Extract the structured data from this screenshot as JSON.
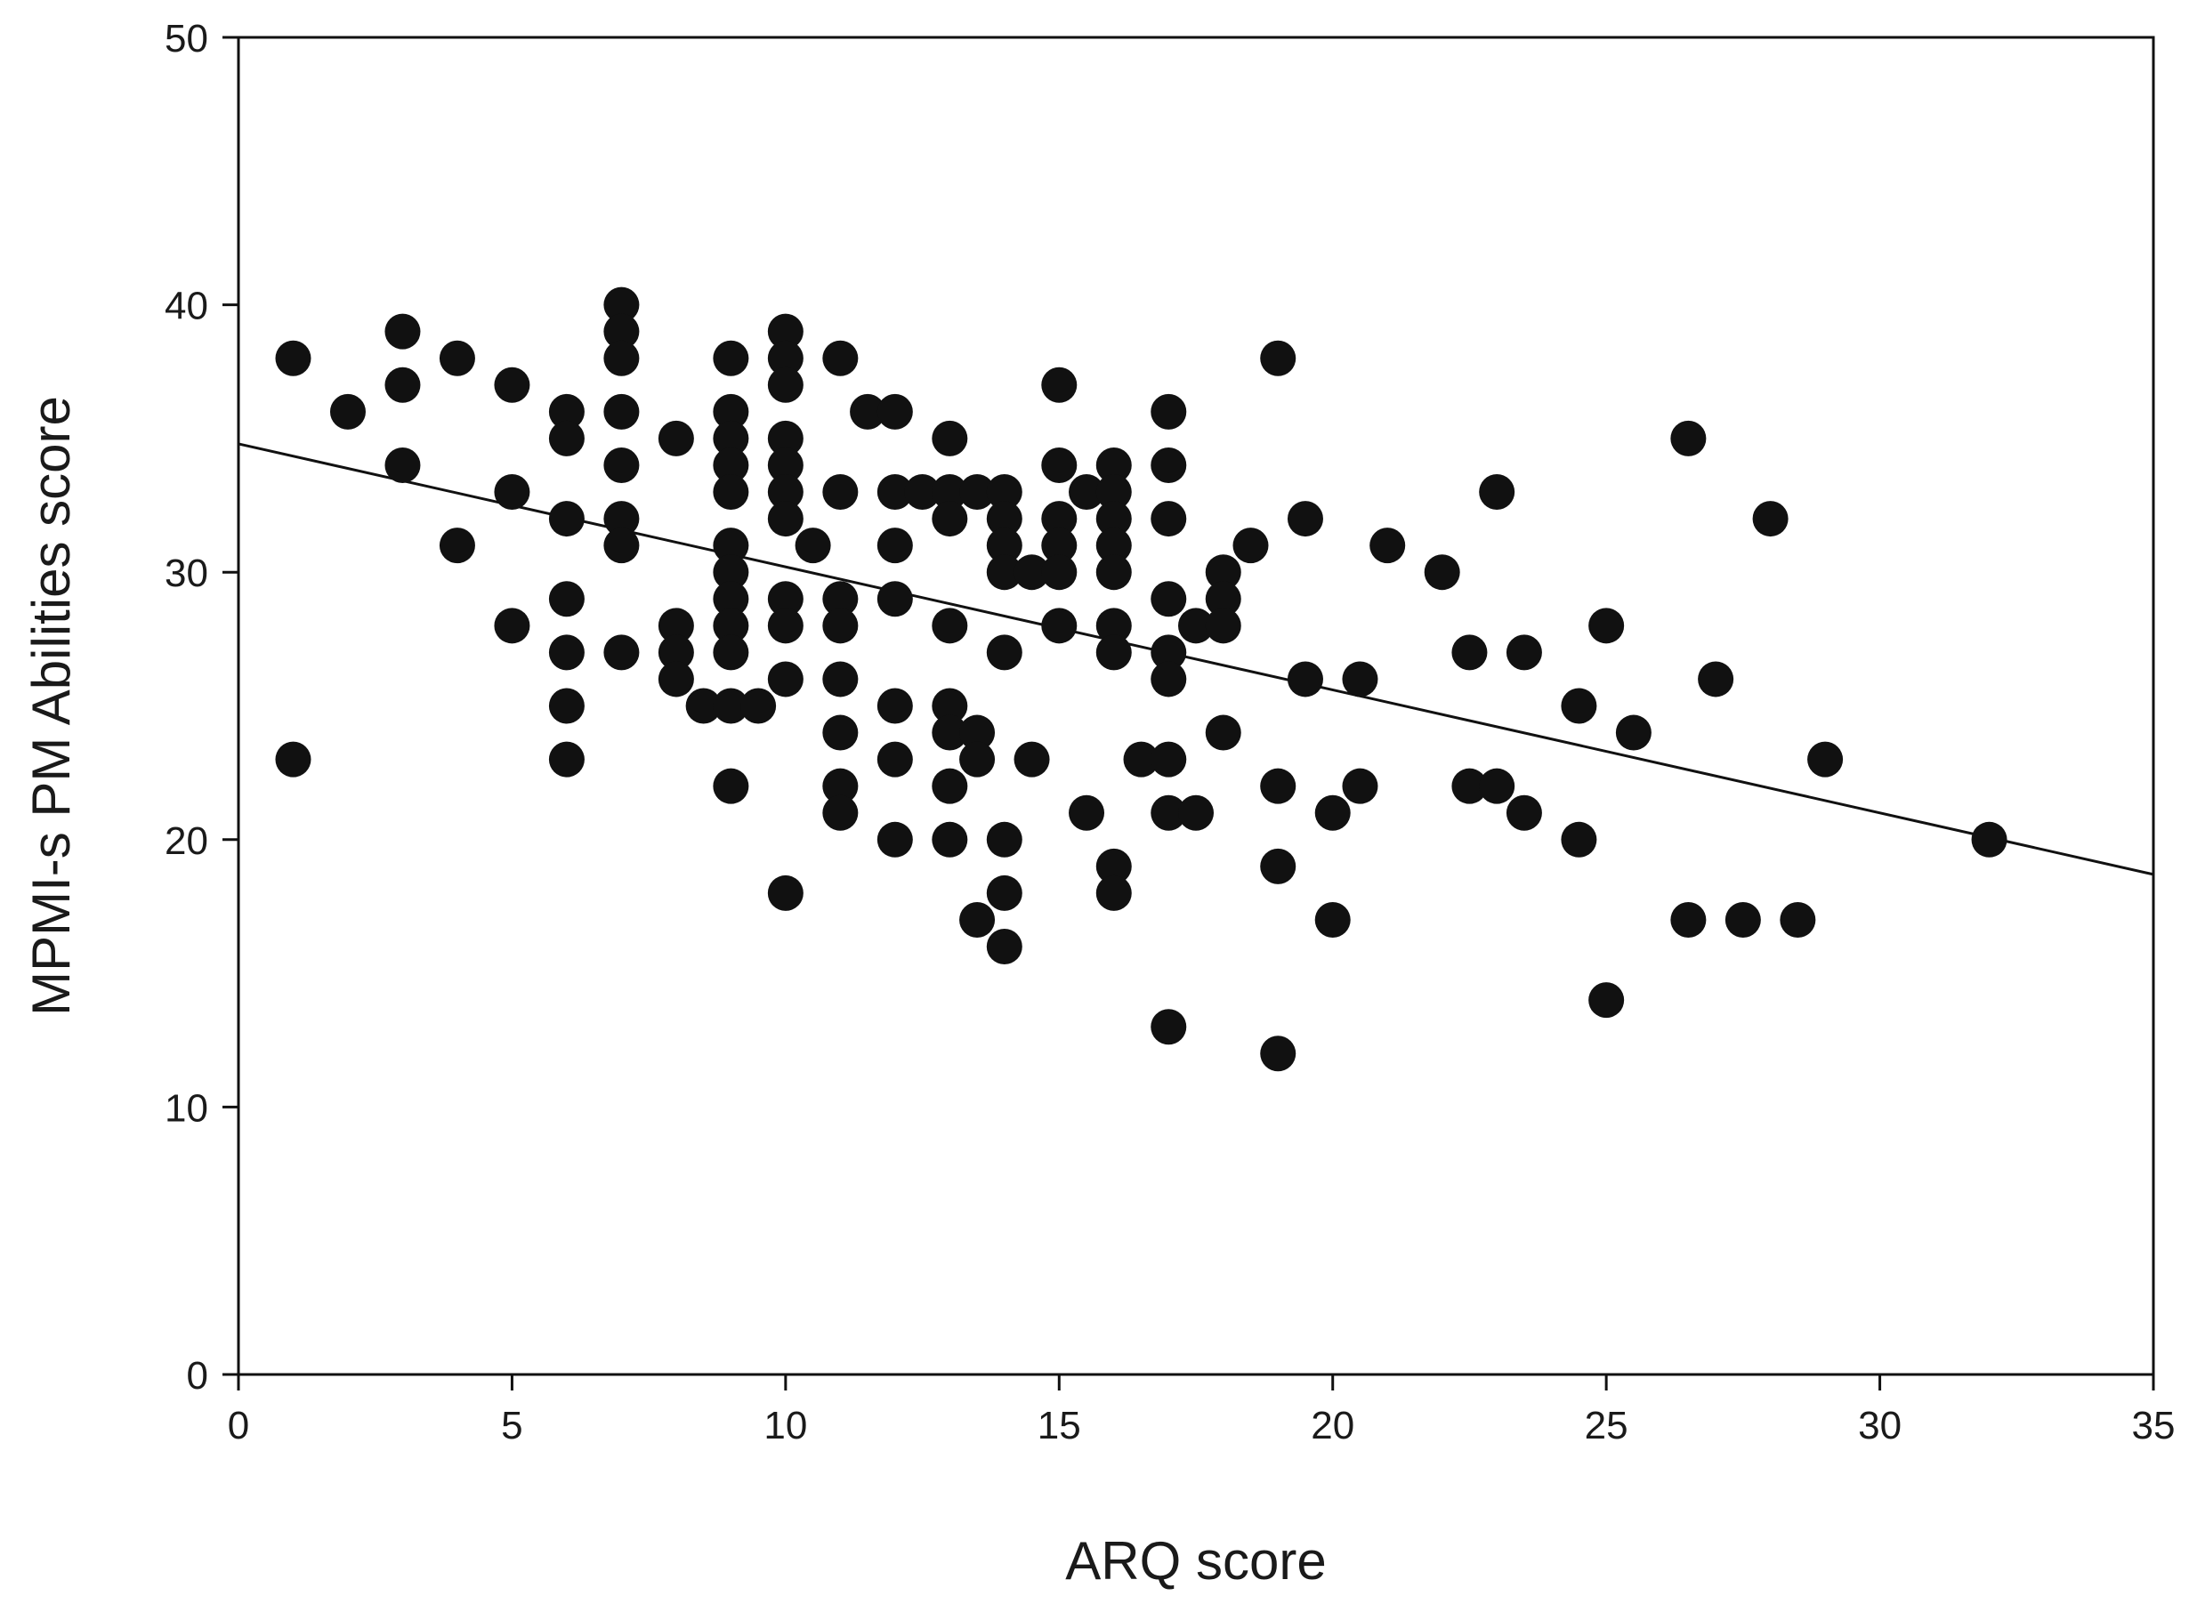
{
  "chart_data": {
    "type": "scatter",
    "title": "",
    "xlabel": "ARQ score",
    "ylabel": "MPMI-s PM Abilities score",
    "xlim": [
      0,
      35
    ],
    "ylim": [
      0,
      50
    ],
    "x_ticks": [
      0,
      5,
      10,
      15,
      20,
      25,
      30,
      35
    ],
    "y_ticks": [
      0,
      10,
      20,
      30,
      40,
      50
    ],
    "grid": false,
    "legend": "none",
    "marker_color": "#111111",
    "points": [
      [
        1,
        38
      ],
      [
        1,
        23
      ],
      [
        2,
        36
      ],
      [
        3,
        39
      ],
      [
        3,
        37
      ],
      [
        3,
        34
      ],
      [
        4,
        38
      ],
      [
        4,
        31
      ],
      [
        5,
        37
      ],
      [
        5,
        33
      ],
      [
        5,
        28
      ],
      [
        6,
        36
      ],
      [
        6,
        35
      ],
      [
        6,
        32
      ],
      [
        6,
        29
      ],
      [
        6,
        27
      ],
      [
        6,
        25
      ],
      [
        6,
        23
      ],
      [
        7,
        40
      ],
      [
        7,
        39
      ],
      [
        7,
        38
      ],
      [
        7,
        36
      ],
      [
        7,
        34
      ],
      [
        7,
        32
      ],
      [
        7,
        31
      ],
      [
        7,
        27
      ],
      [
        8,
        35
      ],
      [
        8,
        28
      ],
      [
        8,
        27
      ],
      [
        8,
        26
      ],
      [
        8.5,
        25
      ],
      [
        9,
        38
      ],
      [
        9,
        36
      ],
      [
        9,
        35
      ],
      [
        9,
        34
      ],
      [
        9,
        33
      ],
      [
        9,
        31
      ],
      [
        9,
        30
      ],
      [
        9,
        29
      ],
      [
        9,
        28
      ],
      [
        9,
        27
      ],
      [
        9,
        25
      ],
      [
        9,
        22
      ],
      [
        9.5,
        25
      ],
      [
        10,
        39
      ],
      [
        10,
        38
      ],
      [
        10,
        37
      ],
      [
        10,
        35
      ],
      [
        10,
        34
      ],
      [
        10,
        33
      ],
      [
        10,
        32
      ],
      [
        10,
        29
      ],
      [
        10,
        28
      ],
      [
        10,
        26
      ],
      [
        10,
        18
      ],
      [
        10.5,
        31
      ],
      [
        11,
        38
      ],
      [
        11,
        33
      ],
      [
        11,
        29
      ],
      [
        11,
        28
      ],
      [
        11,
        26
      ],
      [
        11,
        24
      ],
      [
        11,
        22
      ],
      [
        11,
        21
      ],
      [
        11.5,
        36
      ],
      [
        12,
        36
      ],
      [
        12,
        33
      ],
      [
        12,
        31
      ],
      [
        12,
        29
      ],
      [
        12,
        25
      ],
      [
        12,
        23
      ],
      [
        12,
        20
      ],
      [
        12.5,
        33
      ],
      [
        13,
        35
      ],
      [
        13,
        33
      ],
      [
        13,
        32
      ],
      [
        13,
        28
      ],
      [
        13,
        25
      ],
      [
        13,
        24
      ],
      [
        13,
        22
      ],
      [
        13,
        20
      ],
      [
        13.5,
        33
      ],
      [
        13.5,
        24
      ],
      [
        13.5,
        23
      ],
      [
        13.5,
        17
      ],
      [
        14,
        33
      ],
      [
        14,
        32
      ],
      [
        14,
        31
      ],
      [
        14,
        30
      ],
      [
        14,
        27
      ],
      [
        14,
        20
      ],
      [
        14,
        18
      ],
      [
        14,
        16
      ],
      [
        14.5,
        30
      ],
      [
        14.5,
        23
      ],
      [
        15,
        37
      ],
      [
        15,
        34
      ],
      [
        15,
        32
      ],
      [
        15,
        31
      ],
      [
        15,
        30
      ],
      [
        15,
        28
      ],
      [
        15.5,
        33
      ],
      [
        15.5,
        21
      ],
      [
        16,
        34
      ],
      [
        16,
        33
      ],
      [
        16,
        32
      ],
      [
        16,
        31
      ],
      [
        16,
        30
      ],
      [
        16,
        28
      ],
      [
        16,
        27
      ],
      [
        16,
        19
      ],
      [
        16,
        18
      ],
      [
        16.5,
        23
      ],
      [
        17,
        36
      ],
      [
        17,
        34
      ],
      [
        17,
        32
      ],
      [
        17,
        29
      ],
      [
        17,
        27
      ],
      [
        17,
        26
      ],
      [
        17,
        23
      ],
      [
        17,
        21
      ],
      [
        17,
        13
      ],
      [
        17.5,
        28
      ],
      [
        17.5,
        21
      ],
      [
        18,
        30
      ],
      [
        18,
        29
      ],
      [
        18,
        28
      ],
      [
        18,
        24
      ],
      [
        18.5,
        31
      ],
      [
        19,
        38
      ],
      [
        19,
        22
      ],
      [
        19,
        19
      ],
      [
        19,
        12
      ],
      [
        19.5,
        32
      ],
      [
        19.5,
        26
      ],
      [
        20,
        21
      ],
      [
        20,
        17
      ],
      [
        20.5,
        26
      ],
      [
        20.5,
        22
      ],
      [
        21,
        31
      ],
      [
        22,
        30
      ],
      [
        22.5,
        27
      ],
      [
        22.5,
        22
      ],
      [
        23,
        33
      ],
      [
        23,
        22
      ],
      [
        23.5,
        27
      ],
      [
        23.5,
        21
      ],
      [
        24.5,
        25
      ],
      [
        24.5,
        20
      ],
      [
        25,
        28
      ],
      [
        25,
        14
      ],
      [
        25.5,
        24
      ],
      [
        26.5,
        35
      ],
      [
        26.5,
        17
      ],
      [
        27,
        26
      ],
      [
        27.5,
        17
      ],
      [
        28,
        32
      ],
      [
        28.5,
        17
      ],
      [
        29,
        23
      ],
      [
        32,
        20
      ]
    ],
    "regression_line": {
      "x": [
        0,
        35
      ],
      "y": [
        34.8,
        18.7
      ]
    }
  }
}
